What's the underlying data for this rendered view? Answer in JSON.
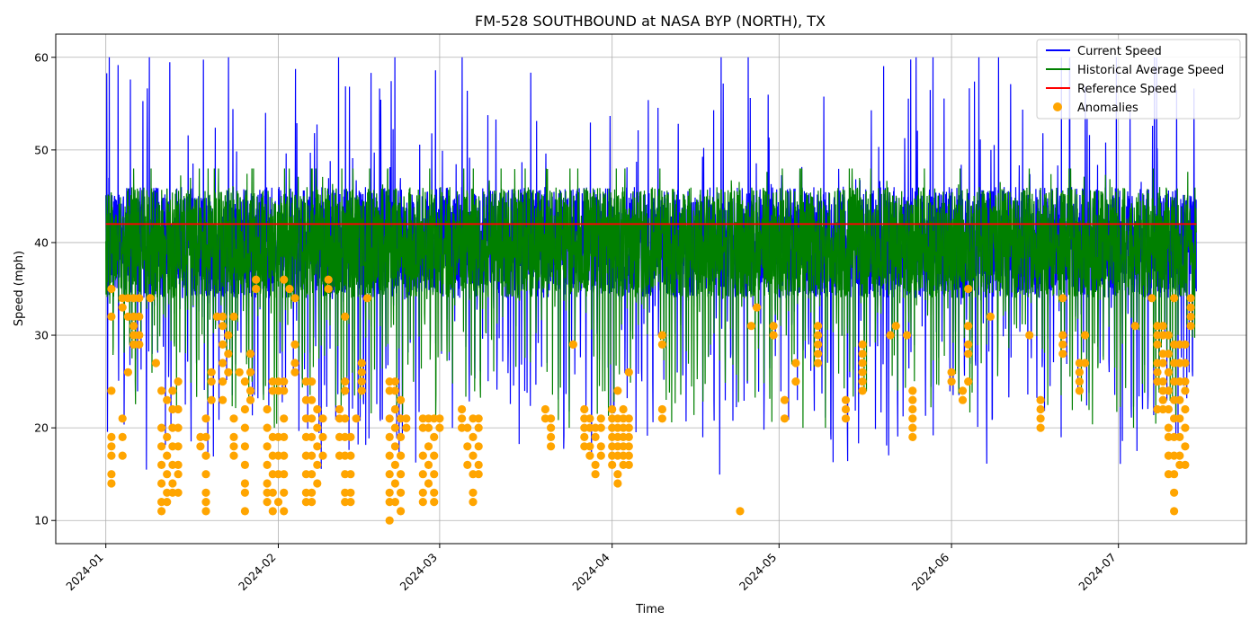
{
  "chart_data": {
    "type": "line",
    "title": "FM-528 SOUTHBOUND at NASA BYP (NORTH), TX",
    "xlabel": "Time",
    "ylabel": "Speed (mph)",
    "x_range": [
      "2023-12-23",
      "2024-07-24"
    ],
    "ylim": [
      7.5,
      62.5
    ],
    "x_ticks": [
      "2024-01",
      "2024-02",
      "2024-03",
      "2024-04",
      "2024-05",
      "2024-06",
      "2024-07"
    ],
    "y_ticks": [
      10,
      20,
      30,
      40,
      50,
      60
    ],
    "grid": true,
    "legend_position": "top-right",
    "colors": {
      "current": "#0000ff",
      "historical": "#008000",
      "reference": "#ff0000",
      "anomalies": "#ffa500"
    },
    "legend": {
      "current": "Current Speed",
      "historical": "Historical Average Speed",
      "reference": "Reference Speed",
      "anomalies": "Anomalies"
    },
    "series": [
      {
        "name": "Current Speed",
        "x_start": "2024-01-01",
        "x_end": "2024-07-15",
        "approx_baseline": 40,
        "approx_range": [
          10,
          60
        ]
      },
      {
        "name": "Historical Average Speed",
        "x_start": "2024-01-01",
        "x_end": "2024-07-15",
        "approx_baseline": 40,
        "approx_range": [
          20,
          48
        ]
      },
      {
        "name": "Reference Speed",
        "x": [
          "2024-01-01",
          "2024-07-15"
        ],
        "y": [
          42,
          42
        ]
      }
    ],
    "anomalies": [
      {
        "x": "2024-01-02",
        "y": [
          32,
          35,
          24,
          19,
          17,
          15,
          14,
          18
        ]
      },
      {
        "x": "2024-01-04",
        "y": [
          34,
          33,
          21,
          19,
          17
        ]
      },
      {
        "x": "2024-01-05",
        "y": [
          34,
          32,
          26
        ]
      },
      {
        "x": "2024-01-06",
        "y": [
          34,
          32,
          31,
          30,
          29
        ]
      },
      {
        "x": "2024-01-07",
        "y": [
          34,
          32,
          30,
          29
        ]
      },
      {
        "x": "2024-01-09",
        "y": [
          34
        ]
      },
      {
        "x": "2024-01-10",
        "y": [
          27
        ]
      },
      {
        "x": "2024-01-11",
        "y": [
          24,
          20,
          18,
          16,
          14,
          12,
          11
        ]
      },
      {
        "x": "2024-01-12",
        "y": [
          23,
          19,
          17,
          15,
          13,
          12
        ]
      },
      {
        "x": "2024-01-13",
        "y": [
          24,
          22,
          20,
          18,
          16,
          14,
          13
        ]
      },
      {
        "x": "2024-01-14",
        "y": [
          25,
          22,
          20,
          18,
          16,
          15,
          13
        ]
      },
      {
        "x": "2024-01-18",
        "y": [
          19,
          18
        ]
      },
      {
        "x": "2024-01-19",
        "y": [
          21,
          19,
          17,
          15,
          13,
          12,
          11
        ]
      },
      {
        "x": "2024-01-20",
        "y": [
          26,
          25,
          23
        ]
      },
      {
        "x": "2024-01-21",
        "y": [
          32
        ]
      },
      {
        "x": "2024-01-22",
        "y": [
          32,
          31,
          29,
          27,
          25,
          23
        ]
      },
      {
        "x": "2024-01-23",
        "y": [
          30,
          28,
          26
        ]
      },
      {
        "x": "2024-01-24",
        "y": [
          32,
          21,
          19,
          18,
          17
        ]
      },
      {
        "x": "2024-01-25",
        "y": [
          26
        ]
      },
      {
        "x": "2024-01-26",
        "y": [
          25,
          22,
          20,
          18,
          16,
          14,
          13,
          11
        ]
      },
      {
        "x": "2024-01-27",
        "y": [
          28,
          26,
          24,
          23
        ]
      },
      {
        "x": "2024-01-28",
        "y": [
          36,
          35
        ]
      },
      {
        "x": "2024-01-30",
        "y": [
          22,
          20,
          18,
          16,
          14,
          13,
          12
        ]
      },
      {
        "x": "2024-01-31",
        "y": [
          25,
          24,
          19,
          17,
          15,
          13,
          11
        ]
      },
      {
        "x": "2024-02-01",
        "y": [
          25,
          24,
          19,
          17,
          15,
          12
        ]
      },
      {
        "x": "2024-02-02",
        "y": [
          36,
          25,
          24,
          21,
          19,
          17,
          15,
          13,
          11
        ]
      },
      {
        "x": "2024-02-03",
        "y": [
          35
        ]
      },
      {
        "x": "2024-02-04",
        "y": [
          34,
          29,
          27,
          26
        ]
      },
      {
        "x": "2024-02-06",
        "y": [
          25,
          23,
          21,
          19,
          17,
          15,
          13,
          12
        ]
      },
      {
        "x": "2024-02-07",
        "y": [
          25,
          23,
          21,
          19,
          17,
          15,
          13,
          12
        ]
      },
      {
        "x": "2024-02-08",
        "y": [
          22,
          20,
          18,
          16,
          14
        ]
      },
      {
        "x": "2024-02-09",
        "y": [
          21,
          19,
          17
        ]
      },
      {
        "x": "2024-02-10",
        "y": [
          36,
          35
        ]
      },
      {
        "x": "2024-02-12",
        "y": [
          22,
          21,
          19,
          17
        ]
      },
      {
        "x": "2024-02-13",
        "y": [
          32,
          25,
          24,
          21,
          19,
          17,
          15,
          13,
          12
        ]
      },
      {
        "x": "2024-02-14",
        "y": [
          19,
          17,
          15,
          13,
          12
        ]
      },
      {
        "x": "2024-02-15",
        "y": [
          21
        ]
      },
      {
        "x": "2024-02-16",
        "y": [
          27,
          26,
          25,
          24
        ]
      },
      {
        "x": "2024-02-17",
        "y": [
          34
        ]
      },
      {
        "x": "2024-02-21",
        "y": [
          25,
          24,
          21,
          19,
          17,
          15,
          13,
          12,
          10
        ]
      },
      {
        "x": "2024-02-22",
        "y": [
          25,
          24,
          22,
          20,
          18,
          16,
          14,
          12
        ]
      },
      {
        "x": "2024-02-23",
        "y": [
          23,
          21,
          19,
          17,
          15,
          13,
          11
        ]
      },
      {
        "x": "2024-02-24",
        "y": [
          21,
          20
        ]
      },
      {
        "x": "2024-02-27",
        "y": [
          21,
          20,
          17,
          15,
          13,
          12
        ]
      },
      {
        "x": "2024-02-28",
        "y": [
          21,
          20,
          18,
          16,
          14
        ]
      },
      {
        "x": "2024-02-29",
        "y": [
          21,
          19,
          17,
          15,
          13,
          12
        ]
      },
      {
        "x": "2024-03-01",
        "y": [
          21,
          20
        ]
      },
      {
        "x": "2024-03-05",
        "y": [
          22,
          21,
          20
        ]
      },
      {
        "x": "2024-03-06",
        "y": [
          20,
          18,
          16
        ]
      },
      {
        "x": "2024-03-07",
        "y": [
          21,
          19,
          17,
          15,
          13,
          12
        ]
      },
      {
        "x": "2024-03-08",
        "y": [
          21,
          20,
          18,
          16,
          15
        ]
      },
      {
        "x": "2024-03-20",
        "y": [
          22,
          21
        ]
      },
      {
        "x": "2024-03-21",
        "y": [
          21,
          20,
          19,
          18
        ]
      },
      {
        "x": "2024-03-25",
        "y": [
          29
        ]
      },
      {
        "x": "2024-03-27",
        "y": [
          22,
          21,
          20,
          19,
          18
        ]
      },
      {
        "x": "2024-03-28",
        "y": [
          21,
          20,
          18,
          17
        ]
      },
      {
        "x": "2024-03-29",
        "y": [
          20,
          19,
          16,
          15
        ]
      },
      {
        "x": "2024-03-30",
        "y": [
          21,
          20,
          18,
          17
        ]
      },
      {
        "x": "2024-04-01",
        "y": [
          22,
          21,
          20,
          19,
          18,
          17,
          16
        ]
      },
      {
        "x": "2024-04-02",
        "y": [
          24,
          21,
          20,
          19,
          18,
          17,
          15,
          14
        ]
      },
      {
        "x": "2024-04-03",
        "y": [
          22,
          21,
          20,
          19,
          18,
          17,
          16
        ]
      },
      {
        "x": "2024-04-04",
        "y": [
          26,
          21,
          20,
          19,
          18,
          17,
          16
        ]
      },
      {
        "x": "2024-04-10",
        "y": [
          30,
          29,
          22,
          21
        ]
      },
      {
        "x": "2024-04-24",
        "y": [
          11
        ]
      },
      {
        "x": "2024-04-26",
        "y": [
          31
        ]
      },
      {
        "x": "2024-04-27",
        "y": [
          33
        ]
      },
      {
        "x": "2024-04-30",
        "y": [
          31,
          30
        ]
      },
      {
        "x": "2024-05-02",
        "y": [
          23,
          21
        ]
      },
      {
        "x": "2024-05-04",
        "y": [
          27,
          25
        ]
      },
      {
        "x": "2024-05-08",
        "y": [
          31,
          30,
          29,
          28,
          27
        ]
      },
      {
        "x": "2024-05-13",
        "y": [
          23,
          22,
          21
        ]
      },
      {
        "x": "2024-05-16",
        "y": [
          29,
          28,
          27,
          26,
          25,
          24
        ]
      },
      {
        "x": "2024-05-21",
        "y": [
          30
        ]
      },
      {
        "x": "2024-05-22",
        "y": [
          31
        ]
      },
      {
        "x": "2024-05-24",
        "y": [
          30
        ]
      },
      {
        "x": "2024-05-25",
        "y": [
          24,
          23,
          22,
          21,
          20,
          19
        ]
      },
      {
        "x": "2024-06-01",
        "y": [
          26,
          25
        ]
      },
      {
        "x": "2024-06-03",
        "y": [
          24,
          23
        ]
      },
      {
        "x": "2024-06-04",
        "y": [
          35,
          31,
          29,
          28,
          25
        ]
      },
      {
        "x": "2024-06-08",
        "y": [
          32
        ]
      },
      {
        "x": "2024-06-15",
        "y": [
          30
        ]
      },
      {
        "x": "2024-06-17",
        "y": [
          23,
          22,
          21,
          20
        ]
      },
      {
        "x": "2024-06-21",
        "y": [
          34,
          30,
          29,
          28
        ]
      },
      {
        "x": "2024-06-24",
        "y": [
          27,
          26,
          25,
          24
        ]
      },
      {
        "x": "2024-06-25",
        "y": [
          30,
          27
        ]
      },
      {
        "x": "2024-07-04",
        "y": [
          31
        ]
      },
      {
        "x": "2024-07-07",
        "y": [
          34
        ]
      },
      {
        "x": "2024-07-08",
        "y": [
          31,
          30,
          29,
          27,
          26,
          25,
          22
        ]
      },
      {
        "x": "2024-07-09",
        "y": [
          31,
          30,
          28,
          27,
          25,
          24,
          23,
          22
        ]
      },
      {
        "x": "2024-07-10",
        "y": [
          30,
          28,
          26,
          24,
          22,
          20,
          19,
          17,
          15
        ]
      },
      {
        "x": "2024-07-11",
        "y": [
          34,
          29,
          27,
          25,
          23,
          21,
          19,
          17,
          15,
          13,
          11
        ]
      },
      {
        "x": "2024-07-12",
        "y": [
          29,
          27,
          25,
          23,
          21,
          19,
          17,
          16
        ]
      },
      {
        "x": "2024-07-13",
        "y": [
          29,
          27,
          25,
          24,
          22,
          20,
          18,
          16
        ]
      },
      {
        "x": "2024-07-14",
        "y": [
          34,
          33,
          32,
          31
        ]
      }
    ]
  }
}
